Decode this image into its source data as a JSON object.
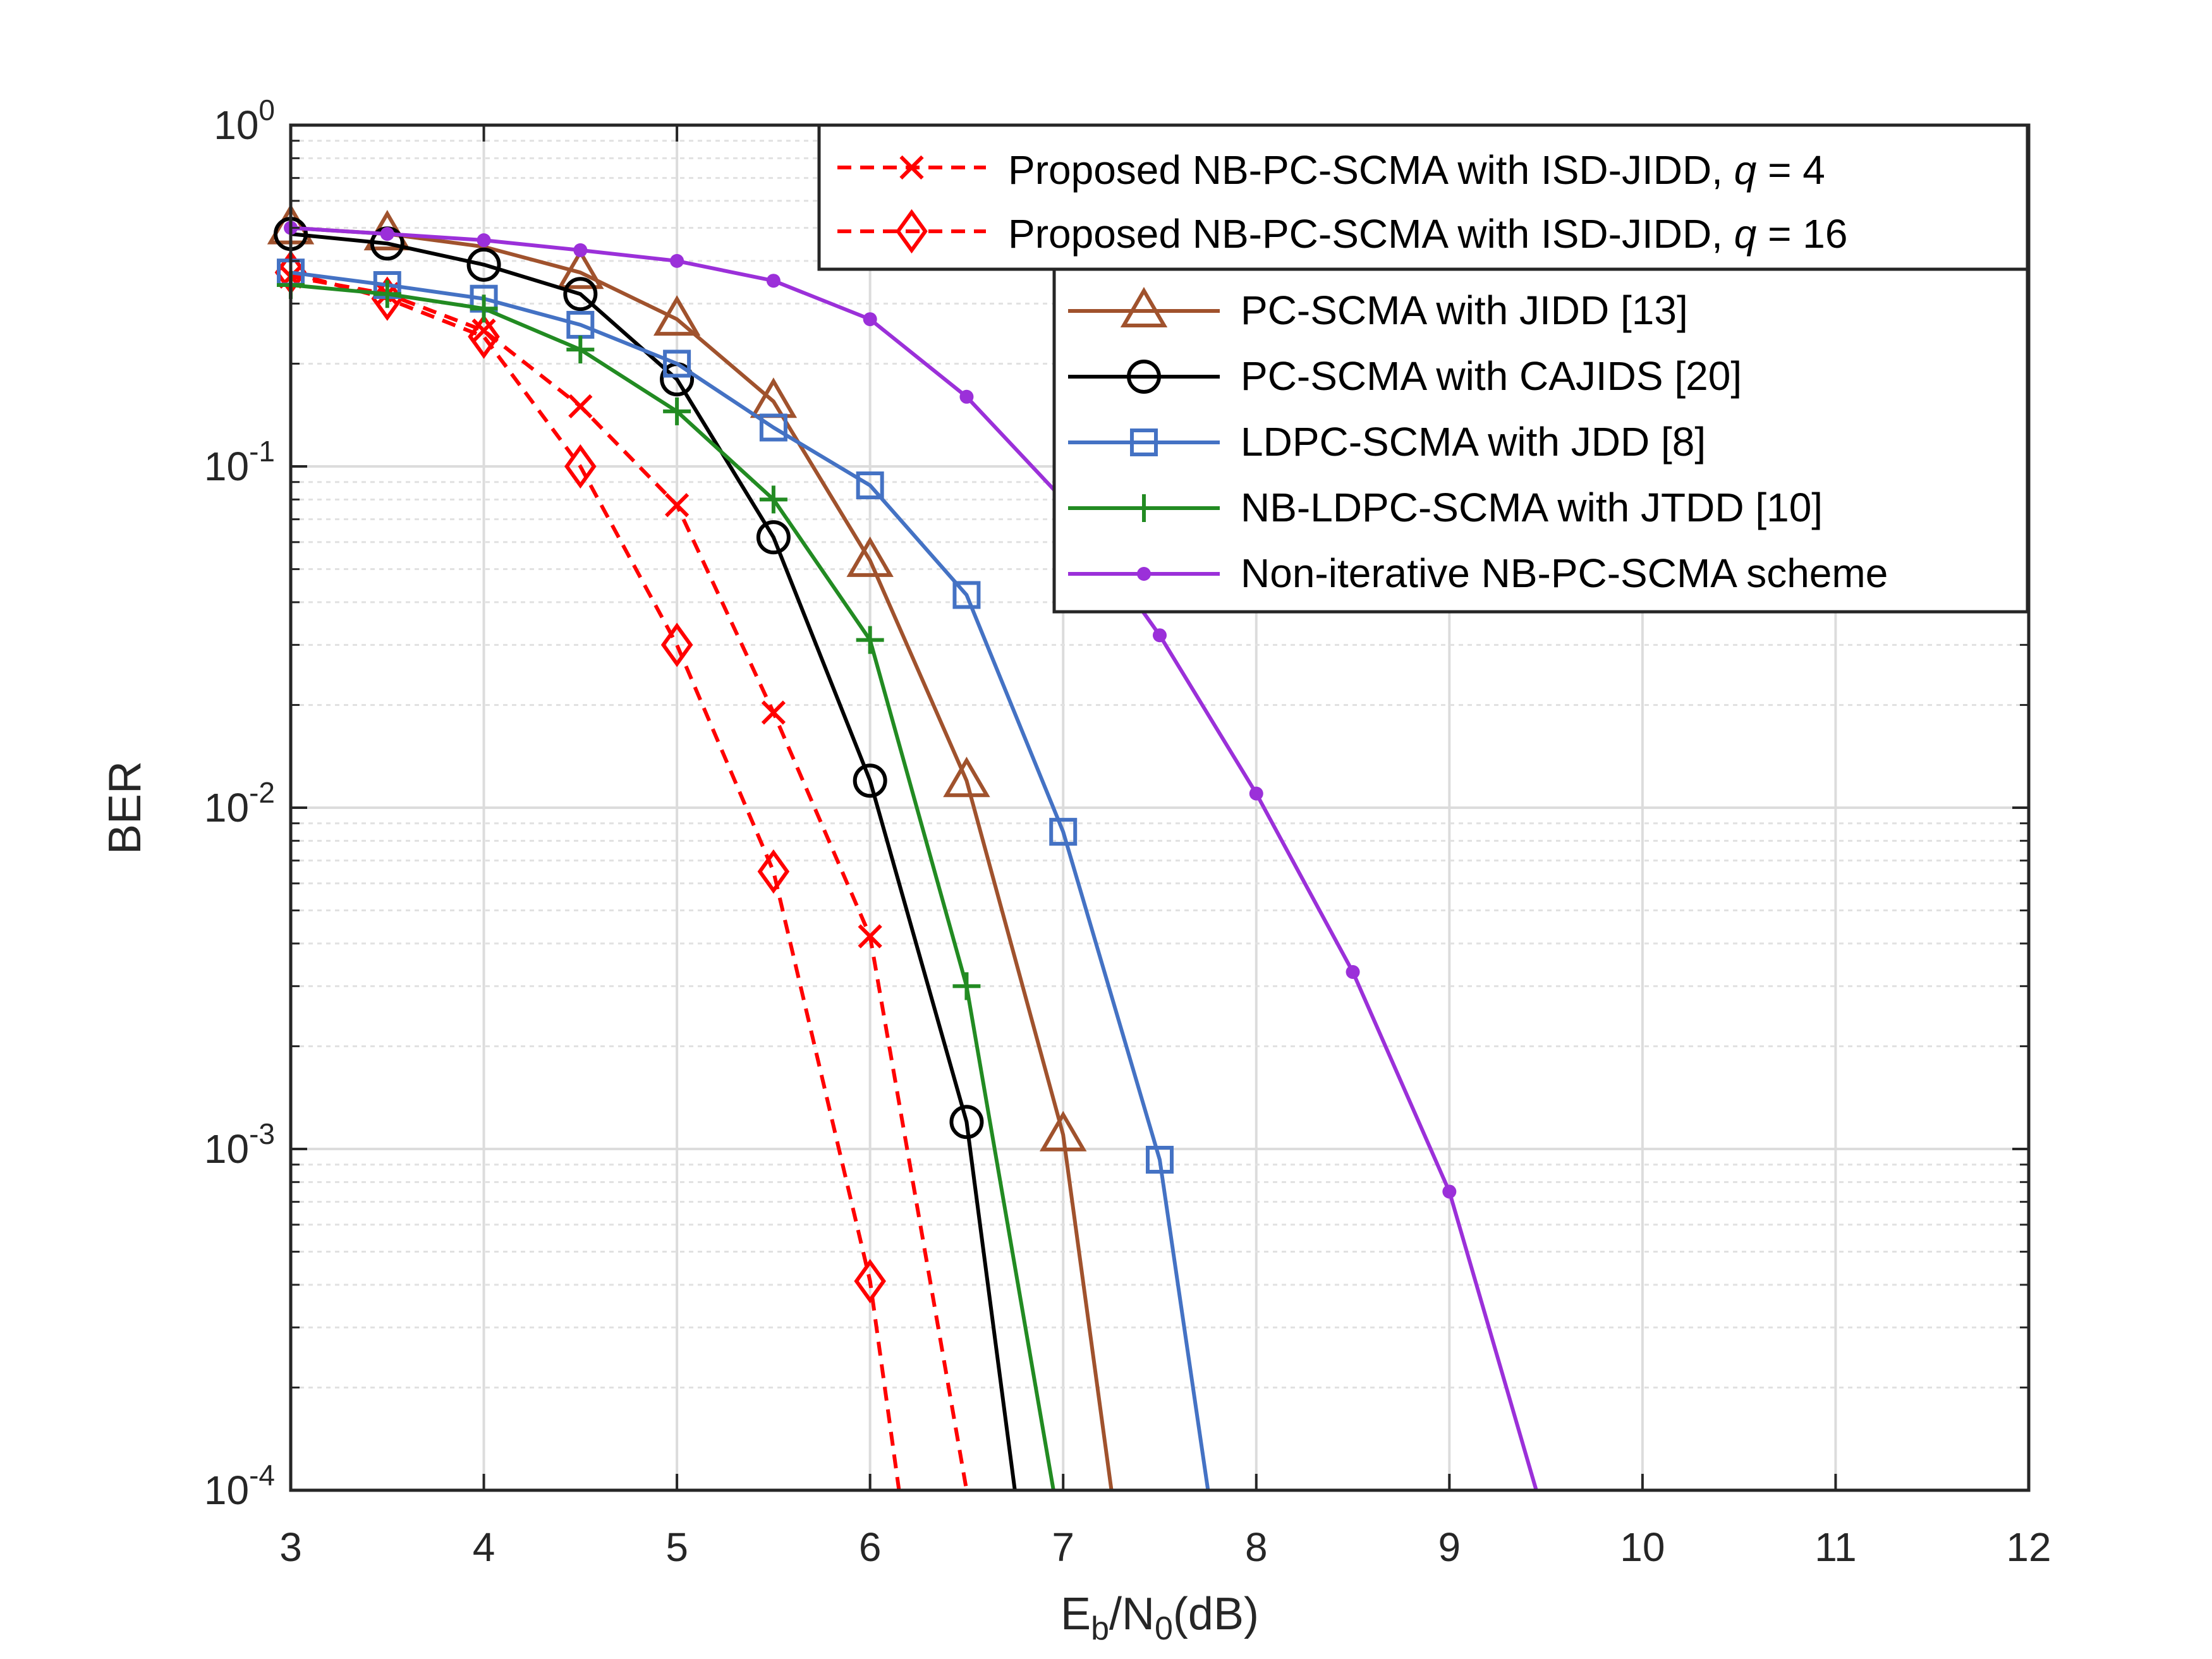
{
  "chart_data": {
    "type": "line",
    "xlabel": {
      "main": "E",
      "sub1": "b",
      "mid": "/N",
      "sub2": "0",
      "tail": "(dB)"
    },
    "ylabel": "BER",
    "xlim": [
      3,
      12
    ],
    "ylim": [
      0.0001,
      1
    ],
    "yscale": "log",
    "grid": true,
    "x_ticks": [
      "3",
      "4",
      "5",
      "6",
      "7",
      "8",
      "9",
      "10",
      "11",
      "12"
    ],
    "y_ticks": [
      {
        "base": "10",
        "exp": "0"
      },
      {
        "base": "10",
        "exp": "-1"
      },
      {
        "base": "10",
        "exp": "-2"
      },
      {
        "base": "10",
        "exp": "-3"
      },
      {
        "base": "10",
        "exp": "-4"
      }
    ],
    "legend_top": {
      "placement": "top-right",
      "entries": [
        {
          "prefix": "Proposed NB-PC-SCMA with ISD-JIDD, ",
          "var": "q",
          "suffix": " = 4"
        },
        {
          "prefix": "Proposed NB-PC-SCMA with ISD-JIDD, ",
          "var": "q",
          "suffix": " = 16"
        }
      ]
    },
    "legend_second": {
      "placement": "upper-right",
      "entries": [
        "PC-SCMA with JIDD [13]",
        "PC-SCMA with CAJIDS [20]",
        "LDPC-SCMA with JDD [8]",
        "NB-LDPC-SCMA with JTDD [10]",
        "Non-iterative NB-PC-SCMA scheme"
      ]
    },
    "series": [
      {
        "color": "#ff0000",
        "dash": true,
        "marker": "x",
        "x": [
          3,
          3.5,
          4,
          4.5,
          5,
          5.5,
          6,
          6.5
        ],
        "y": [
          0.36,
          0.32,
          0.25,
          0.15,
          0.077,
          0.019,
          0.0042,
          0.0001
        ],
        "markers_x": [
          3,
          3.5,
          4,
          4.5,
          5,
          5.5,
          6
        ]
      },
      {
        "color": "#ff0000",
        "dash": true,
        "marker": "diamond",
        "x": [
          3,
          3.5,
          4,
          4.5,
          5,
          5.5,
          6,
          6.15
        ],
        "y": [
          0.37,
          0.31,
          0.24,
          0.1,
          0.03,
          0.0065,
          0.00041,
          0.0001
        ],
        "markers_x": [
          3,
          3.5,
          4,
          4.5,
          5,
          5.5,
          6
        ]
      },
      {
        "color": "#a0522d",
        "dash": false,
        "marker": "triangle",
        "x": [
          3,
          3.5,
          4,
          4.5,
          5,
          5.5,
          6,
          6.5,
          7,
          7.25
        ],
        "y": [
          0.5,
          0.48,
          0.44,
          0.37,
          0.27,
          0.155,
          0.053,
          0.012,
          0.0011,
          0.0001
        ],
        "markers_x": [
          3,
          3.5,
          4.5,
          5,
          5.5,
          6,
          6.5,
          7
        ]
      },
      {
        "color": "#000000",
        "dash": false,
        "marker": "circle",
        "x": [
          3,
          3.5,
          4,
          4.5,
          5,
          5.5,
          6,
          6.5,
          6.75
        ],
        "y": [
          0.48,
          0.45,
          0.39,
          0.32,
          0.18,
          0.062,
          0.012,
          0.0012,
          0.0001
        ],
        "markers_x": [
          3,
          3.5,
          4,
          4.5,
          5,
          5.5,
          6,
          6.5
        ]
      },
      {
        "color": "#4472c4",
        "dash": false,
        "marker": "square",
        "x": [
          3,
          3.5,
          4,
          4.5,
          5,
          5.5,
          6,
          6.5,
          7,
          7.5,
          7.75
        ],
        "y": [
          0.37,
          0.34,
          0.31,
          0.26,
          0.2,
          0.13,
          0.088,
          0.042,
          0.0085,
          0.00093,
          0.0001
        ],
        "markers_x": [
          3,
          3.5,
          4,
          4.5,
          5,
          5.5,
          6,
          6.5,
          7,
          7.5
        ]
      },
      {
        "color": "#228b22",
        "dash": false,
        "marker": "plus",
        "x": [
          3,
          3.5,
          4,
          4.5,
          5,
          5.5,
          6,
          6.5,
          6.95
        ],
        "y": [
          0.34,
          0.32,
          0.29,
          0.22,
          0.145,
          0.08,
          0.031,
          0.003,
          0.0001
        ],
        "markers_x": [
          3,
          3.5,
          4,
          4.5,
          5,
          5.5,
          6,
          6.5
        ]
      },
      {
        "color": "#9b30d9",
        "dash": false,
        "marker": "dot",
        "x": [
          3,
          3.5,
          4,
          4.5,
          5,
          5.5,
          6,
          6.5,
          7,
          7.5,
          8,
          8.5,
          9,
          9.45
        ],
        "y": [
          0.5,
          0.48,
          0.46,
          0.43,
          0.4,
          0.35,
          0.27,
          0.16,
          0.08,
          0.032,
          0.011,
          0.0033,
          0.00075,
          0.0001
        ],
        "markers_x": [
          3,
          3.5,
          4,
          4.5,
          5,
          5.5,
          6,
          6.5,
          7,
          7.5,
          8,
          8.5,
          9
        ]
      }
    ]
  }
}
